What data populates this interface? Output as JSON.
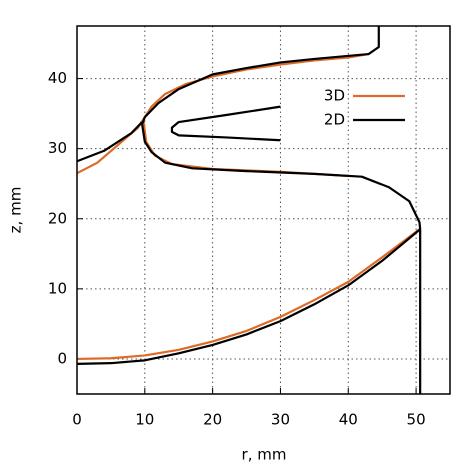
{
  "chart_data": {
    "type": "line",
    "xlabel": "r, mm",
    "ylabel": "z, mm",
    "xlim": [
      0,
      55
    ],
    "ylim": [
      -5,
      47.5
    ],
    "xticks": [
      0,
      10,
      20,
      30,
      40,
      50
    ],
    "yticks": [
      0,
      10,
      20,
      30,
      40
    ],
    "grid": true,
    "legend": "upper right",
    "series": [
      {
        "name": "3D",
        "color": "#dd6a26",
        "x": [
          0,
          3,
          6,
          9,
          9.8,
          11,
          13,
          16,
          20,
          25,
          30,
          35,
          40,
          43,
          null,
          9.8,
          10.2,
          11.5,
          14,
          20,
          30,
          40,
          null,
          0,
          5,
          10,
          15,
          20,
          25,
          30,
          35,
          40,
          45,
          50.5
        ],
        "values": [
          26.5,
          28,
          30.5,
          33,
          34.2,
          36,
          37.8,
          39.2,
          40.3,
          41.3,
          42,
          42.6,
          43,
          43.5,
          null,
          34,
          31,
          29,
          27.8,
          27.1,
          26.7,
          26.1,
          null,
          0,
          0.1,
          0.5,
          1.3,
          2.5,
          4,
          6,
          8.4,
          11,
          14.5,
          18.5
        ]
      },
      {
        "name": "2D",
        "color": "#000000",
        "x": [
          0,
          4,
          8,
          9.6,
          null,
          44.5,
          44.5,
          43,
          35,
          30,
          25,
          20,
          15,
          12,
          10,
          9.6,
          10,
          11,
          13,
          17,
          25,
          35,
          42,
          46,
          49,
          50.5,
          50.6,
          50.6,
          null,
          0,
          5,
          10,
          15,
          20,
          25,
          30,
          35,
          40,
          45,
          50.6,
          null,
          30,
          22,
          15,
          14,
          14,
          15,
          22,
          30
        ],
        "values": [
          28.2,
          29.7,
          32.2,
          33.8,
          null,
          47.5,
          44.5,
          43.5,
          42.8,
          42.3,
          41.5,
          40.6,
          38.5,
          36.5,
          34.5,
          33.5,
          31,
          29.5,
          28,
          27.2,
          26.8,
          26.4,
          26,
          24.5,
          22.5,
          19.5,
          18.5,
          -5,
          null,
          -0.7,
          -0.6,
          -0.2,
          0.8,
          2,
          3.5,
          5.4,
          7.8,
          10.5,
          14,
          18.5,
          null,
          36,
          34.8,
          33.8,
          33,
          32.4,
          31.9,
          31.6,
          31.2
        ]
      }
    ]
  }
}
